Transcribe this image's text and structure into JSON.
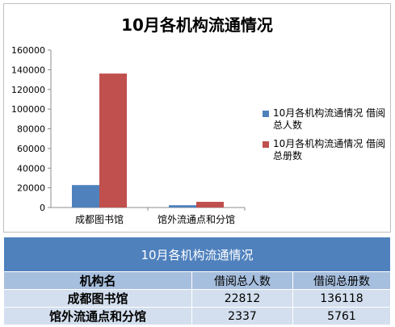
{
  "chart_data": {
    "type": "bar",
    "title": "10月各机构流通情况",
    "categories": [
      "成都图书馆",
      "馆外流通点和分馆"
    ],
    "series": [
      {
        "name": "10月各机构流通情况 借阅总人数",
        "values": [
          22812,
          2337
        ],
        "color": "#4f81bd"
      },
      {
        "name": "10月各机构流通情况 借阅总册数",
        "values": [
          136118,
          5761
        ],
        "color": "#c0504d"
      }
    ],
    "ylim": [
      0,
      160000
    ],
    "yticks": [
      0,
      20000,
      40000,
      60000,
      80000,
      100000,
      120000,
      140000,
      160000
    ],
    "grid": false,
    "legend": "right"
  },
  "table": {
    "title": "10月各机构流通情况",
    "headers": [
      "机构名",
      "借阅总人数",
      "借阅总册数"
    ],
    "rows": [
      [
        "成都图书馆",
        "22812",
        "136118"
      ],
      [
        "馆外流通点和分馆",
        "2337",
        "5761"
      ]
    ]
  }
}
